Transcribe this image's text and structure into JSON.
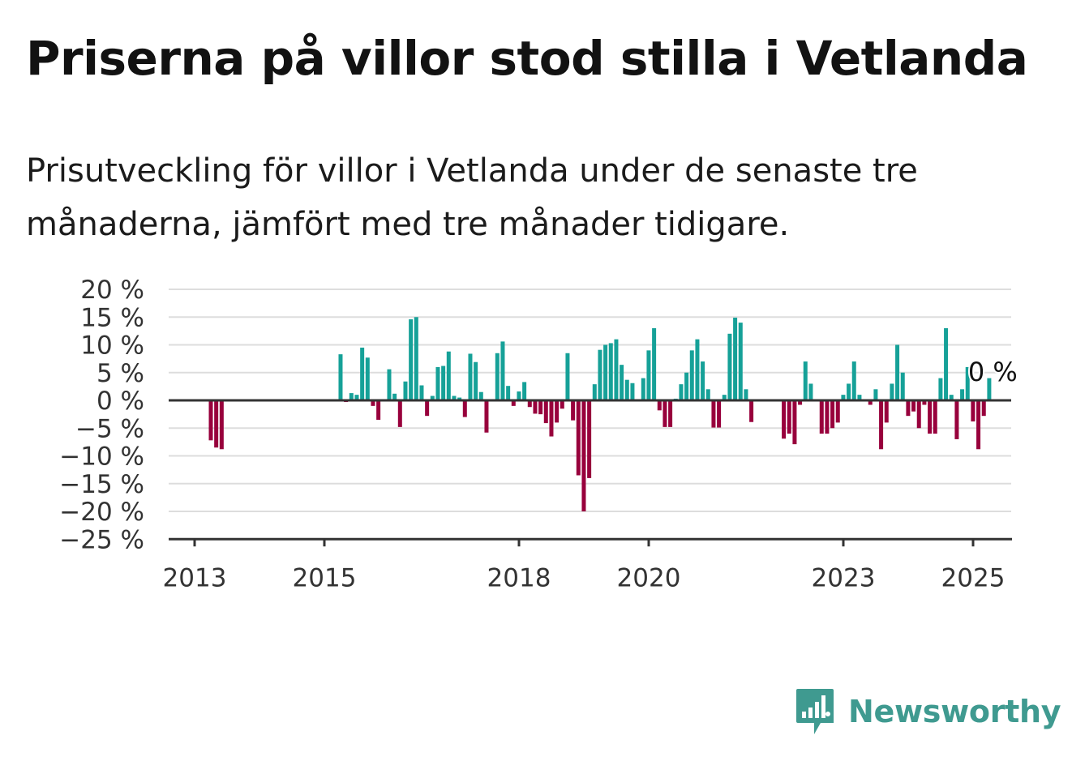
{
  "title": "Priserna på villor stod stilla i Vetlanda",
  "subtitle": "Prisutveckling för villor i Vetlanda under de senaste tre månaderna, jämfört med tre månader tidigare.",
  "brand": {
    "name": "Newsworthy",
    "icon": "newsworthy-bar-chart-icon"
  },
  "colors": {
    "positive": "#16a198",
    "negative": "#98003c",
    "grid": "#dddddd",
    "axis": "#333333"
  },
  "chart_data": {
    "type": "bar",
    "x_unit": "month",
    "start_month": "2013-04",
    "ylim": [
      -25,
      20
    ],
    "yticks": [
      20,
      15,
      10,
      5,
      0,
      -5,
      -10,
      -15,
      -20,
      -25
    ],
    "ytick_labels": [
      "20 %",
      "15 %",
      "10 %",
      "5 %",
      "0 %",
      "−5 %",
      "−10 %",
      "−15 %",
      "−20 %",
      "−25 %"
    ],
    "xticks": [
      {
        "label": "2013",
        "year": 2013
      },
      {
        "label": "2015",
        "year": 2015
      },
      {
        "label": "2018",
        "year": 2018
      },
      {
        "label": "2020",
        "year": 2020
      },
      {
        "label": "2023",
        "year": 2023
      },
      {
        "label": "2025",
        "year": 2025
      }
    ],
    "annotation": "0 %",
    "grid": true,
    "values": [
      -7.2,
      -8.5,
      -8.8,
      null,
      null,
      null,
      null,
      null,
      null,
      null,
      null,
      null,
      null,
      null,
      null,
      null,
      null,
      null,
      null,
      null,
      null,
      null,
      null,
      null,
      8.3,
      -0.3,
      1.3,
      1.0,
      9.5,
      7.7,
      -1.0,
      -3.5,
      0.2,
      5.6,
      1.2,
      -4.8,
      3.4,
      14.6,
      15.0,
      2.7,
      -2.8,
      0.8,
      6.0,
      6.2,
      8.8,
      0.8,
      0.5,
      -3.0,
      8.4,
      6.9,
      1.5,
      -5.8,
      0.2,
      8.5,
      10.6,
      2.6,
      -1.0,
      1.6,
      3.3,
      -1.2,
      -2.4,
      -2.5,
      -4.1,
      -6.5,
      -4.0,
      -1.5,
      8.5,
      -3.6,
      -13.5,
      -20.0,
      -14.0,
      2.9,
      9.1,
      10.0,
      10.3,
      11.0,
      6.4,
      3.7,
      3.1,
      0.2,
      4.0,
      9.0,
      13.0,
      -1.8,
      -4.8,
      -4.8,
      0.3,
      2.9,
      5.0,
      9.0,
      11.0,
      7.0,
      2.0,
      -4.9,
      -4.9,
      1.0,
      12.0,
      14.9,
      14.0,
      2.0,
      -3.9,
      null,
      null,
      null,
      null,
      -0.2,
      -6.9,
      -6.0,
      -7.9,
      -0.8,
      7.0,
      3.0,
      null,
      -6.0,
      -6.0,
      -5.0,
      -4.0,
      1.0,
      3.0,
      7.0,
      1.0,
      null,
      -0.8,
      2.0,
      -8.8,
      -4.0,
      3.0,
      10.0,
      5.0,
      -2.8,
      -2.0,
      -5.0,
      -0.8,
      -6.0,
      -6.0,
      4.0,
      13.0,
      1.0,
      -7.0,
      2.0,
      6.0,
      -3.8,
      -8.8,
      -2.8,
      4.0
    ]
  }
}
